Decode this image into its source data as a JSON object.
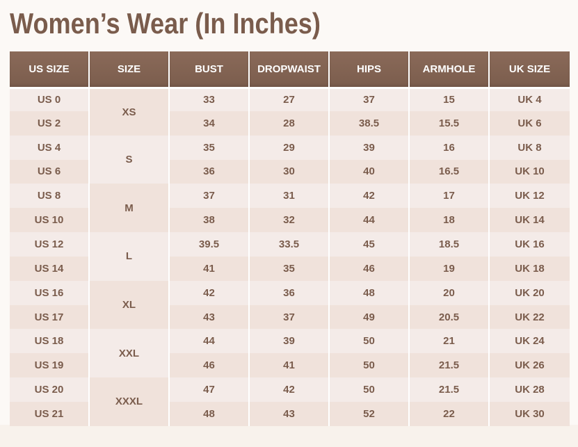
{
  "title": "Women’s Wear (In Inches)",
  "columns": [
    "US SIZE",
    "SIZE",
    "BUST",
    "DROPWAIST",
    "HIPS",
    "ARMHOLE",
    "UK SIZE"
  ],
  "groups": [
    {
      "size": "XS",
      "rows": [
        {
          "us": "US 0",
          "bust": "33",
          "dropwaist": "27",
          "hips": "37",
          "armhole": "15",
          "uk": "UK 4"
        },
        {
          "us": "US 2",
          "bust": "34",
          "dropwaist": "28",
          "hips": "38.5",
          "armhole": "15.5",
          "uk": "UK 6"
        }
      ]
    },
    {
      "size": "S",
      "rows": [
        {
          "us": "US 4",
          "bust": "35",
          "dropwaist": "29",
          "hips": "39",
          "armhole": "16",
          "uk": "UK 8"
        },
        {
          "us": "US 6",
          "bust": "36",
          "dropwaist": "30",
          "hips": "40",
          "armhole": "16.5",
          "uk": "UK 10"
        }
      ]
    },
    {
      "size": "M",
      "rows": [
        {
          "us": "US 8",
          "bust": "37",
          "dropwaist": "31",
          "hips": "42",
          "armhole": "17",
          "uk": "UK 12"
        },
        {
          "us": "US 10",
          "bust": "38",
          "dropwaist": "32",
          "hips": "44",
          "armhole": "18",
          "uk": "UK 14"
        }
      ]
    },
    {
      "size": "L",
      "rows": [
        {
          "us": "US 12",
          "bust": "39.5",
          "dropwaist": "33.5",
          "hips": "45",
          "armhole": "18.5",
          "uk": "UK 16"
        },
        {
          "us": "US 14",
          "bust": "41",
          "dropwaist": "35",
          "hips": "46",
          "armhole": "19",
          "uk": "UK 18"
        }
      ]
    },
    {
      "size": "XL",
      "rows": [
        {
          "us": "US 16",
          "bust": "42",
          "dropwaist": "36",
          "hips": "48",
          "armhole": "20",
          "uk": "UK 20"
        },
        {
          "us": "US 17",
          "bust": "43",
          "dropwaist": "37",
          "hips": "49",
          "armhole": "20.5",
          "uk": "UK 22"
        }
      ]
    },
    {
      "size": "XXL",
      "rows": [
        {
          "us": "US 18",
          "bust": "44",
          "dropwaist": "39",
          "hips": "50",
          "armhole": "21",
          "uk": "UK 24"
        },
        {
          "us": "US 19",
          "bust": "46",
          "dropwaist": "41",
          "hips": "50",
          "armhole": "21.5",
          "uk": "UK 26"
        }
      ]
    },
    {
      "size": "XXXL",
      "rows": [
        {
          "us": "US 20",
          "bust": "47",
          "dropwaist": "42",
          "hips": "50",
          "armhole": "21.5",
          "uk": "UK 28"
        },
        {
          "us": "US 21",
          "bust": "48",
          "dropwaist": "43",
          "hips": "52",
          "armhole": "22",
          "uk": "UK 30"
        }
      ]
    }
  ],
  "colors": {
    "header_bg": "#7b5d4d",
    "text": "#7a5c4c",
    "row_light": "#f4ebe8",
    "row_dark": "#f0e2db"
  }
}
